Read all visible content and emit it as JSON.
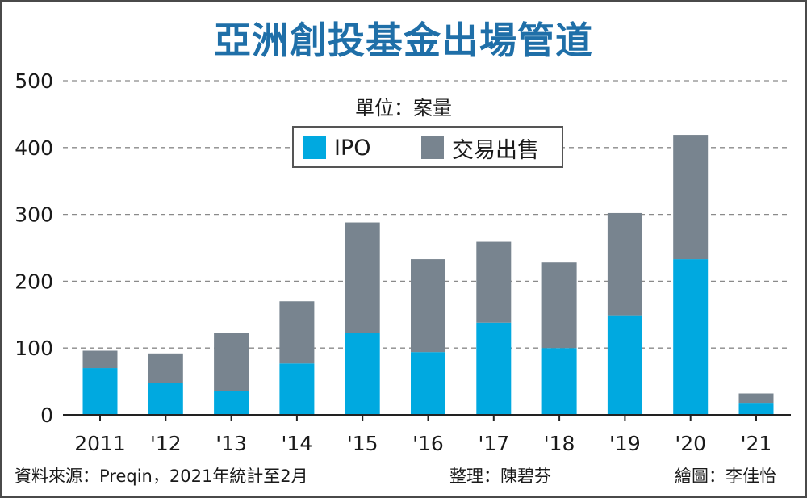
{
  "title": "亞洲創投基金出場管道",
  "unit": "單位：案量",
  "colors": {
    "ipo": "#00a9e0",
    "trade": "#78848f",
    "title": "#1f6fa8",
    "grid": "#8a8a8a"
  },
  "legend": [
    {
      "key": "ipo",
      "label": "IPO"
    },
    {
      "key": "trade",
      "label": "交易出售"
    }
  ],
  "chart_data": {
    "type": "bar",
    "stacked": true,
    "title": "亞洲創投基金出場管道",
    "categories": [
      "2011",
      "'12",
      "'13",
      "'14",
      "'15",
      "'16",
      "'17",
      "'18",
      "'19",
      "'20",
      "'21"
    ],
    "series": [
      {
        "name": "IPO",
        "values": [
          70,
          48,
          36,
          77,
          122,
          94,
          138,
          100,
          149,
          233,
          18
        ]
      },
      {
        "name": "交易出售",
        "values": [
          26,
          44,
          87,
          93,
          166,
          139,
          121,
          128,
          153,
          186,
          14
        ]
      }
    ],
    "totals": [
      96,
      92,
      123,
      170,
      288,
      233,
      259,
      228,
      302,
      419,
      32
    ],
    "y_ticks": [
      0,
      100,
      200,
      300,
      400,
      500
    ],
    "ylim": [
      0,
      500
    ],
    "grid": true,
    "legend_position": "top-center",
    "xlabel": "",
    "ylabel": ""
  },
  "footer": {
    "source": "資料來源：Preqin，2021年統計至2月",
    "editor": "整理：陳碧芬",
    "artist": "繪圖：李佳怡"
  }
}
